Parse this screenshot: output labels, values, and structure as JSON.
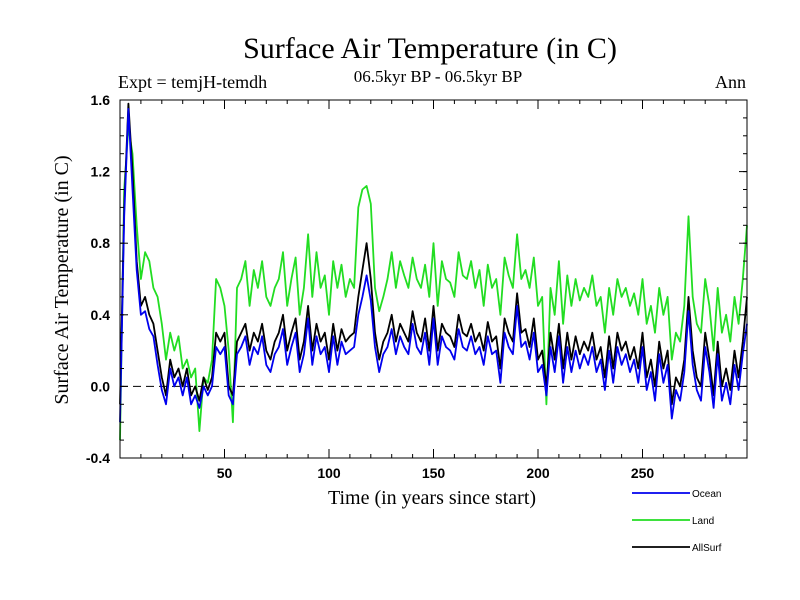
{
  "chart_data": {
    "type": "line",
    "title": "Surface Air Temperature (in C)",
    "subtitle": "06.5kyr BP - 06.5kyr BP",
    "expt_label": "Expt = temjH-temdh",
    "season_label": "Ann",
    "xlabel": "Time (in years since start)",
    "ylabel": "Surface Air Temperature (in C)",
    "xlim": [
      0,
      300
    ],
    "ylim": [
      -0.4,
      1.6
    ],
    "x_ticks": [
      50,
      100,
      150,
      200,
      250
    ],
    "x_tick_labels": [
      "50",
      "100",
      "150",
      "200",
      "250"
    ],
    "y_ticks": [
      -0.4,
      0.0,
      0.4,
      0.8,
      1.2,
      1.6
    ],
    "y_tick_labels": [
      "-0.4",
      "0.0",
      "0.4",
      "0.8",
      "1.2",
      "1.6"
    ],
    "reference_line": {
      "y": 0.0,
      "style": "dashed"
    },
    "legend_position": "bottom-right",
    "series": [
      {
        "name": "Land",
        "color": "#22dd22",
        "x": [
          0,
          2,
          4,
          6,
          8,
          10,
          12,
          14,
          16,
          18,
          20,
          22,
          24,
          26,
          28,
          30,
          32,
          34,
          36,
          38,
          40,
          42,
          44,
          46,
          48,
          50,
          52,
          54,
          56,
          58,
          60,
          62,
          64,
          66,
          68,
          70,
          72,
          74,
          76,
          78,
          80,
          82,
          84,
          86,
          88,
          90,
          92,
          94,
          96,
          98,
          100,
          102,
          104,
          106,
          108,
          110,
          112,
          114,
          116,
          118,
          120,
          122,
          124,
          126,
          128,
          130,
          132,
          134,
          136,
          138,
          140,
          142,
          144,
          146,
          148,
          150,
          152,
          154,
          156,
          158,
          160,
          162,
          164,
          166,
          168,
          170,
          172,
          174,
          176,
          178,
          180,
          182,
          184,
          186,
          188,
          190,
          192,
          194,
          196,
          198,
          200,
          202,
          204,
          206,
          208,
          210,
          212,
          214,
          216,
          218,
          220,
          222,
          224,
          226,
          228,
          230,
          232,
          234,
          236,
          238,
          240,
          242,
          244,
          246,
          248,
          250,
          252,
          254,
          256,
          258,
          260,
          262,
          264,
          266,
          268,
          270,
          272,
          274,
          276,
          278,
          280,
          282,
          284,
          286,
          288,
          290,
          292,
          294,
          296,
          298,
          300
        ],
        "values": [
          -0.3,
          1.1,
          1.45,
          1.3,
          0.9,
          0.6,
          0.75,
          0.7,
          0.55,
          0.5,
          0.35,
          0.15,
          0.3,
          0.2,
          0.28,
          0.1,
          0.15,
          0.05,
          0.1,
          -0.25,
          0.05,
          0.02,
          0.15,
          0.6,
          0.55,
          0.45,
          0.2,
          -0.2,
          0.55,
          0.6,
          0.7,
          0.45,
          0.65,
          0.55,
          0.7,
          0.5,
          0.45,
          0.55,
          0.6,
          0.75,
          0.45,
          0.6,
          0.72,
          0.4,
          0.55,
          0.85,
          0.5,
          0.75,
          0.55,
          0.62,
          0.4,
          0.7,
          0.55,
          0.68,
          0.5,
          0.6,
          0.55,
          1.0,
          1.1,
          1.12,
          1.02,
          0.55,
          0.42,
          0.5,
          0.6,
          0.75,
          0.55,
          0.7,
          0.62,
          0.55,
          0.72,
          0.6,
          0.55,
          0.68,
          0.5,
          0.8,
          0.45,
          0.7,
          0.6,
          0.58,
          0.5,
          0.75,
          0.62,
          0.6,
          0.7,
          0.55,
          0.65,
          0.45,
          0.68,
          0.55,
          0.6,
          0.4,
          0.72,
          0.62,
          0.55,
          0.85,
          0.6,
          0.65,
          0.55,
          0.72,
          0.45,
          0.5,
          -0.1,
          0.55,
          0.4,
          0.7,
          0.35,
          0.62,
          0.45,
          0.6,
          0.48,
          0.55,
          0.5,
          0.62,
          0.45,
          0.5,
          0.3,
          0.55,
          0.4,
          0.6,
          0.5,
          0.55,
          0.45,
          0.52,
          0.4,
          0.6,
          0.35,
          0.45,
          0.3,
          0.55,
          0.4,
          0.5,
          0.15,
          0.3,
          0.25,
          0.45,
          0.95,
          0.5,
          0.35,
          0.3,
          0.6,
          0.45,
          0.2,
          0.55,
          0.3,
          0.4,
          0.25,
          0.5,
          0.35,
          0.6,
          0.9
        ]
      },
      {
        "name": "AllSurf",
        "color": "#000000",
        "x": [
          0,
          2,
          4,
          6,
          8,
          10,
          12,
          14,
          16,
          18,
          20,
          22,
          24,
          26,
          28,
          30,
          32,
          34,
          36,
          38,
          40,
          42,
          44,
          46,
          48,
          50,
          52,
          54,
          56,
          58,
          60,
          62,
          64,
          66,
          68,
          70,
          72,
          74,
          76,
          78,
          80,
          82,
          84,
          86,
          88,
          90,
          92,
          94,
          96,
          98,
          100,
          102,
          104,
          106,
          108,
          110,
          112,
          114,
          116,
          118,
          120,
          122,
          124,
          126,
          128,
          130,
          132,
          134,
          136,
          138,
          140,
          142,
          144,
          146,
          148,
          150,
          152,
          154,
          156,
          158,
          160,
          162,
          164,
          166,
          168,
          170,
          172,
          174,
          176,
          178,
          180,
          182,
          184,
          186,
          188,
          190,
          192,
          194,
          196,
          198,
          200,
          202,
          204,
          206,
          208,
          210,
          212,
          214,
          216,
          218,
          220,
          222,
          224,
          226,
          228,
          230,
          232,
          234,
          236,
          238,
          240,
          242,
          244,
          246,
          248,
          250,
          252,
          254,
          256,
          258,
          260,
          262,
          264,
          266,
          268,
          270,
          272,
          274,
          276,
          278,
          280,
          282,
          284,
          286,
          288,
          290,
          292,
          294,
          296,
          298,
          300
        ],
        "values": [
          -0.1,
          1.0,
          1.58,
          1.2,
          0.7,
          0.45,
          0.5,
          0.4,
          0.35,
          0.2,
          0.05,
          -0.05,
          0.15,
          0.05,
          0.1,
          0.0,
          0.1,
          -0.05,
          0.0,
          -0.08,
          0.05,
          -0.02,
          0.05,
          0.3,
          0.25,
          0.3,
          0.0,
          -0.05,
          0.25,
          0.3,
          0.35,
          0.2,
          0.3,
          0.25,
          0.35,
          0.2,
          0.15,
          0.25,
          0.3,
          0.4,
          0.2,
          0.3,
          0.38,
          0.15,
          0.25,
          0.45,
          0.2,
          0.35,
          0.25,
          0.3,
          0.15,
          0.35,
          0.2,
          0.32,
          0.25,
          0.28,
          0.3,
          0.5,
          0.65,
          0.8,
          0.6,
          0.3,
          0.15,
          0.25,
          0.3,
          0.4,
          0.25,
          0.35,
          0.3,
          0.25,
          0.42,
          0.3,
          0.25,
          0.38,
          0.2,
          0.45,
          0.2,
          0.35,
          0.3,
          0.28,
          0.22,
          0.4,
          0.3,
          0.28,
          0.35,
          0.25,
          0.3,
          0.2,
          0.36,
          0.25,
          0.28,
          0.1,
          0.38,
          0.3,
          0.25,
          0.52,
          0.3,
          0.32,
          0.22,
          0.38,
          0.15,
          0.2,
          0.0,
          0.3,
          0.15,
          0.35,
          0.1,
          0.3,
          0.15,
          0.28,
          0.18,
          0.25,
          0.2,
          0.3,
          0.15,
          0.22,
          0.05,
          0.28,
          0.1,
          0.3,
          0.2,
          0.25,
          0.15,
          0.22,
          0.1,
          0.3,
          0.05,
          0.15,
          0.0,
          0.25,
          0.1,
          0.2,
          -0.1,
          0.05,
          0.0,
          0.15,
          0.5,
          0.2,
          0.05,
          0.0,
          0.3,
          0.15,
          -0.05,
          0.25,
          0.0,
          0.1,
          -0.02,
          0.2,
          0.05,
          0.25,
          0.5
        ]
      },
      {
        "name": "Ocean",
        "color": "#0000ee",
        "x": [
          0,
          2,
          4,
          6,
          8,
          10,
          12,
          14,
          16,
          18,
          20,
          22,
          24,
          26,
          28,
          30,
          32,
          34,
          36,
          38,
          40,
          42,
          44,
          46,
          48,
          50,
          52,
          54,
          56,
          58,
          60,
          62,
          64,
          66,
          68,
          70,
          72,
          74,
          76,
          78,
          80,
          82,
          84,
          86,
          88,
          90,
          92,
          94,
          96,
          98,
          100,
          102,
          104,
          106,
          108,
          110,
          112,
          114,
          116,
          118,
          120,
          122,
          124,
          126,
          128,
          130,
          132,
          134,
          136,
          138,
          140,
          142,
          144,
          146,
          148,
          150,
          152,
          154,
          156,
          158,
          160,
          162,
          164,
          166,
          168,
          170,
          172,
          174,
          176,
          178,
          180,
          182,
          184,
          186,
          188,
          190,
          192,
          194,
          196,
          198,
          200,
          202,
          204,
          206,
          208,
          210,
          212,
          214,
          216,
          218,
          220,
          222,
          224,
          226,
          228,
          230,
          232,
          234,
          236,
          238,
          240,
          242,
          244,
          246,
          248,
          250,
          252,
          254,
          256,
          258,
          260,
          262,
          264,
          266,
          268,
          270,
          272,
          274,
          276,
          278,
          280,
          282,
          284,
          286,
          288,
          290,
          292,
          294,
          296,
          298,
          300
        ],
        "values": [
          -0.2,
          0.95,
          1.55,
          1.1,
          0.65,
          0.4,
          0.42,
          0.32,
          0.28,
          0.12,
          -0.02,
          -0.1,
          0.1,
          0.0,
          0.05,
          -0.05,
          0.05,
          -0.1,
          -0.05,
          -0.12,
          0.0,
          -0.05,
          0.0,
          0.22,
          0.18,
          0.22,
          -0.05,
          -0.1,
          0.18,
          0.22,
          0.28,
          0.12,
          0.22,
          0.18,
          0.28,
          0.12,
          0.08,
          0.18,
          0.22,
          0.32,
          0.12,
          0.22,
          0.3,
          0.08,
          0.18,
          0.38,
          0.12,
          0.28,
          0.18,
          0.22,
          0.08,
          0.28,
          0.12,
          0.25,
          0.18,
          0.2,
          0.22,
          0.4,
          0.5,
          0.62,
          0.48,
          0.22,
          0.08,
          0.18,
          0.22,
          0.32,
          0.18,
          0.28,
          0.22,
          0.18,
          0.35,
          0.22,
          0.18,
          0.3,
          0.12,
          0.38,
          0.12,
          0.28,
          0.22,
          0.2,
          0.15,
          0.32,
          0.22,
          0.2,
          0.28,
          0.18,
          0.22,
          0.12,
          0.28,
          0.18,
          0.2,
          0.02,
          0.3,
          0.22,
          0.18,
          0.45,
          0.22,
          0.25,
          0.15,
          0.3,
          0.08,
          0.12,
          -0.05,
          0.22,
          0.08,
          0.28,
          0.02,
          0.22,
          0.08,
          0.2,
          0.1,
          0.18,
          0.12,
          0.22,
          0.08,
          0.15,
          -0.02,
          0.2,
          0.02,
          0.22,
          0.12,
          0.18,
          0.08,
          0.15,
          0.02,
          0.22,
          -0.02,
          0.08,
          -0.08,
          0.18,
          0.02,
          0.12,
          -0.18,
          -0.02,
          -0.08,
          0.08,
          0.42,
          0.12,
          -0.02,
          -0.08,
          0.22,
          0.08,
          -0.12,
          0.18,
          -0.08,
          0.02,
          -0.1,
          0.12,
          -0.02,
          0.18,
          0.35
        ]
      }
    ]
  }
}
